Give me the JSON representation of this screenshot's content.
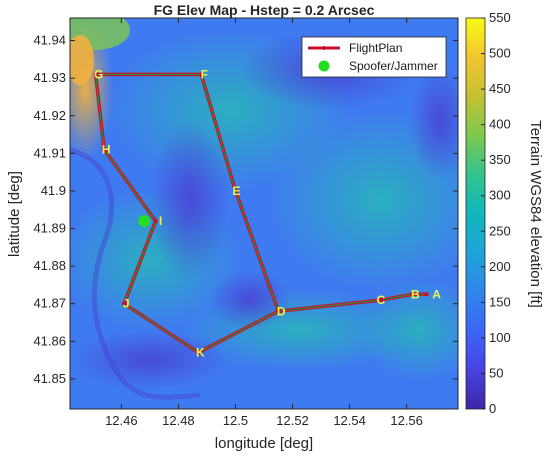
{
  "chart_data": {
    "type": "heatmap",
    "title": "FG Elev Map - Hstep = 0.2 Arcsec",
    "xlabel": "longitude [deg]",
    "ylabel": "latitude [deg]",
    "xlim": [
      12.442,
      12.578
    ],
    "ylim": [
      41.842,
      41.946
    ],
    "xticks": [
      12.46,
      12.48,
      12.5,
      12.52,
      12.54,
      12.56
    ],
    "xtick_labels": [
      "12.46",
      "12.48",
      "12.5",
      "12.52",
      "12.54",
      "12.56"
    ],
    "yticks": [
      41.85,
      41.86,
      41.87,
      41.88,
      41.89,
      41.9,
      41.91,
      41.92,
      41.93,
      41.94
    ],
    "ytick_labels": [
      "41.85",
      "41.86",
      "41.87",
      "41.88",
      "41.89",
      "41.9",
      "41.91",
      "41.92",
      "41.93",
      "41.94"
    ],
    "colorbar": {
      "label": "Terrain WGS84 elevation [ft]",
      "range": [
        0,
        550
      ],
      "ticks": [
        0,
        50,
        100,
        150,
        200,
        250,
        300,
        350,
        400,
        450,
        500,
        550
      ],
      "tick_labels": [
        "0",
        "50",
        "100",
        "150",
        "200",
        "250",
        "300",
        "350",
        "400",
        "450",
        "500",
        "550"
      ],
      "colormap": "parula"
    },
    "series": [
      {
        "name": "FlightPlan",
        "type": "line",
        "color": "#c8102e",
        "points": [
          {
            "label": "A",
            "x": 12.567,
            "y": 41.8725
          },
          {
            "label": "B",
            "x": 12.562,
            "y": 41.8725
          },
          {
            "label": "C",
            "x": 12.551,
            "y": 41.871
          },
          {
            "label": "D",
            "x": 12.515,
            "y": 41.868
          },
          {
            "label": "K",
            "x": 12.487,
            "y": 41.857
          },
          {
            "label": "J",
            "x": 12.461,
            "y": 41.87
          },
          {
            "label": "I",
            "x": 12.472,
            "y": 41.892
          },
          {
            "label": "H",
            "x": 12.454,
            "y": 41.911
          },
          {
            "label": "G",
            "x": 12.451,
            "y": 41.931
          },
          {
            "label": "F",
            "x": 12.488,
            "y": 41.931
          },
          {
            "label": "E",
            "x": 12.5,
            "y": 41.9
          },
          {
            "label": "D",
            "x": 12.515,
            "y": 41.868
          }
        ]
      },
      {
        "name": "Spoofer/Jammer",
        "type": "scatter",
        "color": "#22dd22",
        "points": [
          {
            "x": 12.468,
            "y": 41.892
          }
        ]
      }
    ],
    "legend_position": "top-right",
    "grid": false
  }
}
